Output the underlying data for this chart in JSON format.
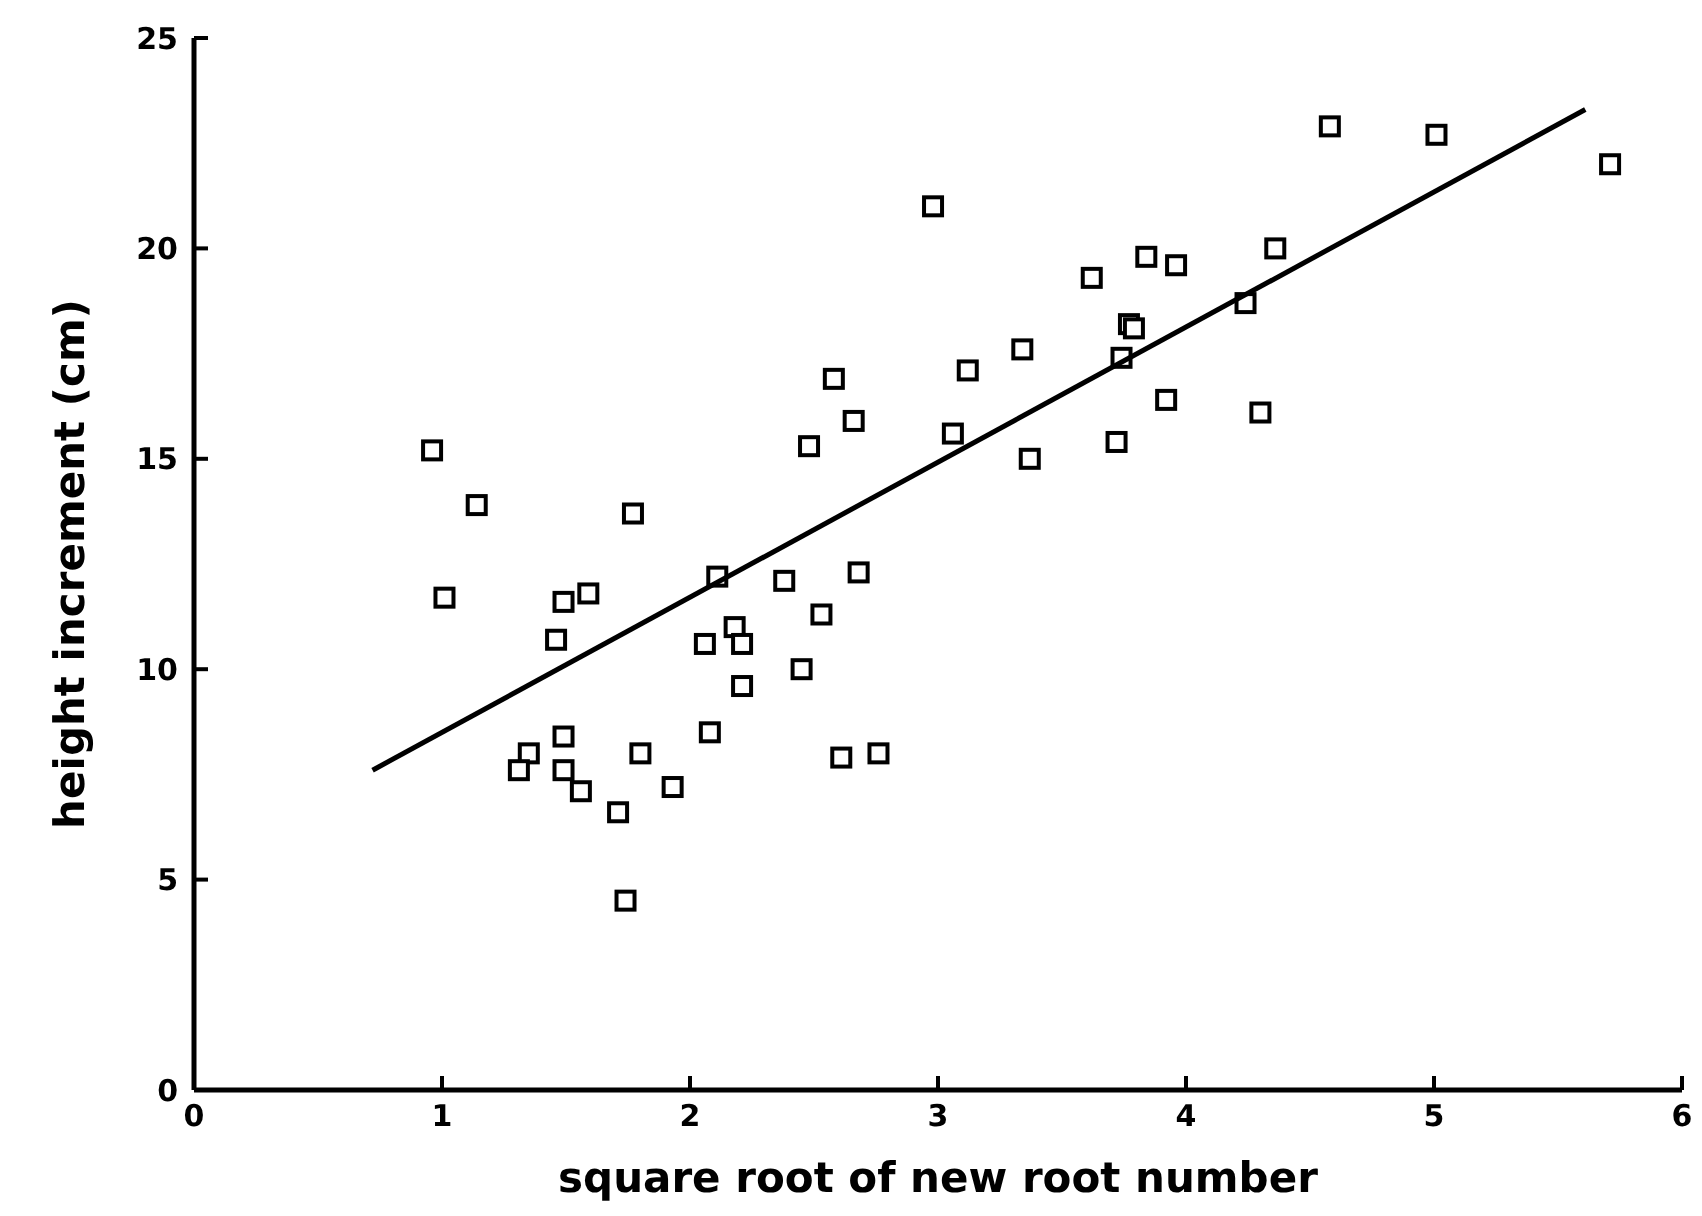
{
  "chart_data": {
    "type": "scatter",
    "xlabel": "square root of new root number",
    "ylabel": "height increment (cm)",
    "xlim": [
      0,
      6
    ],
    "xticks": [
      0,
      1,
      2,
      3,
      4,
      5,
      6
    ],
    "ylim": [
      0,
      25
    ],
    "yticks": [
      0,
      5,
      10,
      15,
      20,
      25
    ],
    "grid": false,
    "marker": "square",
    "series": [
      {
        "color": "#000000",
        "x": [
          0.96,
          1.01,
          1.14,
          1.77,
          2.98,
          2.58,
          2.66,
          2.48,
          2.11,
          2.38,
          2.68,
          1.49,
          1.59,
          1.46,
          2.06,
          2.18,
          2.21,
          2.53,
          2.45,
          2.21,
          2.08,
          1.49,
          1.35,
          1.31,
          1.49,
          1.56,
          1.8,
          1.93,
          1.71,
          1.74,
          2.61,
          2.76,
          4.58,
          5.01,
          5.71,
          4.36,
          3.84,
          3.96,
          3.62,
          4.24,
          3.77,
          3.79,
          3.34,
          3.74,
          3.12,
          3.92,
          4.3,
          3.06,
          3.72,
          3.37
        ],
        "values": [
          15.2,
          11.7,
          13.9,
          13.7,
          21.0,
          16.9,
          15.9,
          15.3,
          12.2,
          12.1,
          12.3,
          11.6,
          11.8,
          10.7,
          10.6,
          11.0,
          10.6,
          11.3,
          10.0,
          9.6,
          8.5,
          8.4,
          8.0,
          7.6,
          7.6,
          7.1,
          8.0,
          7.2,
          6.6,
          4.5,
          7.9,
          8.0,
          22.9,
          22.7,
          22.0,
          20.0,
          19.8,
          19.6,
          19.3,
          18.7,
          18.2,
          18.1,
          17.6,
          17.4,
          17.1,
          16.4,
          16.1,
          15.6,
          15.4,
          15.0
        ]
      },
      {
        "type": "line",
        "color": "#000000",
        "marker": "none",
        "line_style": "solid",
        "x": [
          0.72,
          5.61
        ],
        "values": [
          7.6,
          23.3
        ]
      }
    ]
  }
}
